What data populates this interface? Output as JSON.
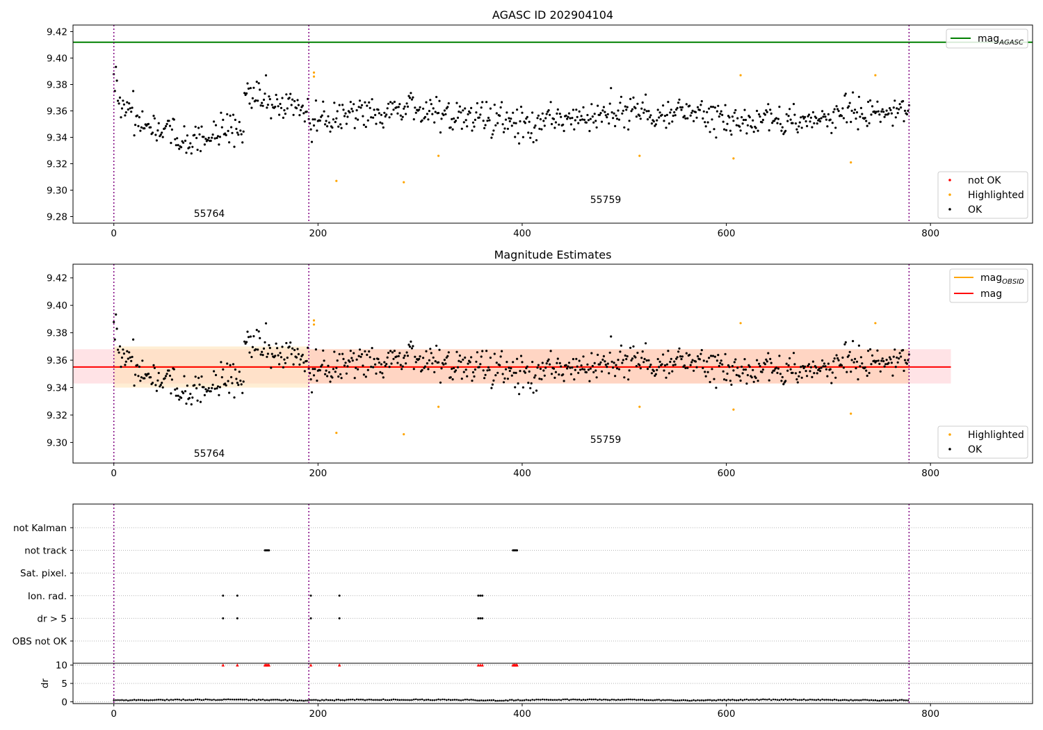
{
  "chart_data": [
    {
      "type": "scatter",
      "title": "AGASC ID 202904104",
      "xlabel": "",
      "ylabel": "",
      "xlim": [
        -40,
        900
      ],
      "ylim": [
        9.275,
        9.425
      ],
      "xticks": [
        "0",
        "200",
        "400",
        "600",
        "800"
      ],
      "yticks": [
        "9.28",
        "9.30",
        "9.32",
        "9.34",
        "9.36",
        "9.38",
        "9.40",
        "9.42"
      ],
      "obsid_boundaries": [
        0,
        191,
        779
      ],
      "obsid_labels": [
        {
          "text": "55764",
          "x": 95,
          "y": 9.283
        },
        {
          "text": "55759",
          "x": 485,
          "y": 9.293
        }
      ],
      "reference_lines": [
        {
          "name": "mag_AGASC",
          "y": 9.412,
          "color": "#008000"
        }
      ],
      "legend_top": {
        "position": "top-right",
        "entries": [
          {
            "label": "mag",
            "sub": "AGASC",
            "color": "#008000"
          }
        ]
      },
      "legend_bottom": {
        "position": "bottom-right",
        "entries": [
          {
            "label": "not OK",
            "color": "#ff0000"
          },
          {
            "label": "Highlighted",
            "color": "#ffa500"
          },
          {
            "label": "OK",
            "color": "#000000"
          }
        ]
      },
      "highlighted_points": [
        [
          196,
          9.389
        ],
        [
          196,
          9.386
        ],
        [
          218,
          9.307
        ],
        [
          284,
          9.306
        ],
        [
          318,
          9.326
        ],
        [
          515,
          9.326
        ],
        [
          607,
          9.324
        ],
        [
          614,
          9.387
        ],
        [
          722,
          9.321
        ],
        [
          746,
          9.387
        ]
      ],
      "grid": false
    },
    {
      "type": "scatter",
      "title": "Magnitude Estimates",
      "xlabel": "",
      "ylabel": "",
      "xlim": [
        -40,
        900
      ],
      "ylim": [
        9.285,
        9.43
      ],
      "xticks": [
        "0",
        "200",
        "400",
        "600",
        "800"
      ],
      "yticks": [
        "9.30",
        "9.32",
        "9.34",
        "9.36",
        "9.38",
        "9.40",
        "9.42"
      ],
      "obsid_boundaries": [
        0,
        191,
        779
      ],
      "obsid_labels": [
        {
          "text": "55764",
          "x": 95,
          "y": 9.295
        },
        {
          "text": "55759",
          "x": 485,
          "y": 9.299
        }
      ],
      "bands": [
        {
          "name": "mag range",
          "x0": -40,
          "x1": 820,
          "y0": 9.343,
          "y1": 9.368,
          "color": "#ffc0c8",
          "opacity": 0.45
        },
        {
          "name": "mag_OBSID 55764 range",
          "x0": 0,
          "x1": 191,
          "y0": 9.34,
          "y1": 9.37,
          "color": "#ffe0b0",
          "opacity": 0.55
        },
        {
          "name": "mag_OBSID 55759 range",
          "x0": 191,
          "x1": 779,
          "y0": 9.343,
          "y1": 9.368,
          "color": "#ffc8a0",
          "opacity": 0.5
        }
      ],
      "lines": [
        {
          "name": "mag_OBSID",
          "segments": [
            [
              0,
              191,
              9.355
            ],
            [
              191,
              779,
              9.355
            ]
          ],
          "color": "#ffa500"
        },
        {
          "name": "mag",
          "x0": -40,
          "x1": 820,
          "y": 9.355,
          "color": "#ff0000"
        }
      ],
      "legend_top": {
        "position": "top-right",
        "entries": [
          {
            "label": "mag",
            "sub": "OBSID",
            "color": "#ffa500"
          },
          {
            "label": "mag",
            "sub": "",
            "color": "#ff0000"
          }
        ]
      },
      "legend_bottom": {
        "position": "bottom-right",
        "entries": [
          {
            "label": "Highlighted",
            "color": "#ffa500"
          },
          {
            "label": "OK",
            "color": "#000000"
          }
        ]
      },
      "highlighted_points": [
        [
          196,
          9.389
        ],
        [
          196,
          9.386
        ],
        [
          218,
          9.307
        ],
        [
          284,
          9.306
        ],
        [
          318,
          9.326
        ],
        [
          515,
          9.326
        ],
        [
          607,
          9.324
        ],
        [
          614,
          9.387
        ],
        [
          722,
          9.321
        ],
        [
          746,
          9.387
        ]
      ],
      "grid": false
    },
    {
      "type": "scatter",
      "title": "",
      "xlabel": "",
      "ylabel": "",
      "xlim": [
        -40,
        900
      ],
      "obsid_boundaries": [
        0,
        191,
        779
      ],
      "categories": [
        "not Kalman",
        "not track",
        "Sat. pixel.",
        "Ion. rad.",
        "dr > 5",
        "OBS not OK"
      ],
      "flag_points": {
        "not track": [
          148,
          149,
          150,
          151,
          152,
          391,
          392,
          393,
          394,
          395
        ],
        "Ion. rad.": [
          107,
          121,
          193,
          221,
          357,
          359,
          361
        ],
        "dr > 5": [
          107,
          121,
          193,
          221,
          357,
          359,
          361
        ]
      },
      "grid": true
    },
    {
      "type": "scatter",
      "title": "",
      "xlabel": "",
      "ylabel": "dr",
      "xlim": [
        -40,
        900
      ],
      "ylim": [
        -0.5,
        10.5
      ],
      "xticks": [
        "0",
        "200",
        "400",
        "600",
        "800"
      ],
      "yticks": [
        "0",
        "5",
        "10"
      ],
      "obsid_boundaries": [
        0,
        191,
        779
      ],
      "clipped_markers_at_10": [
        107,
        121,
        148,
        149,
        150,
        151,
        152,
        193,
        221,
        357,
        359,
        361,
        391,
        392,
        393,
        394,
        395
      ],
      "grid": true
    }
  ]
}
